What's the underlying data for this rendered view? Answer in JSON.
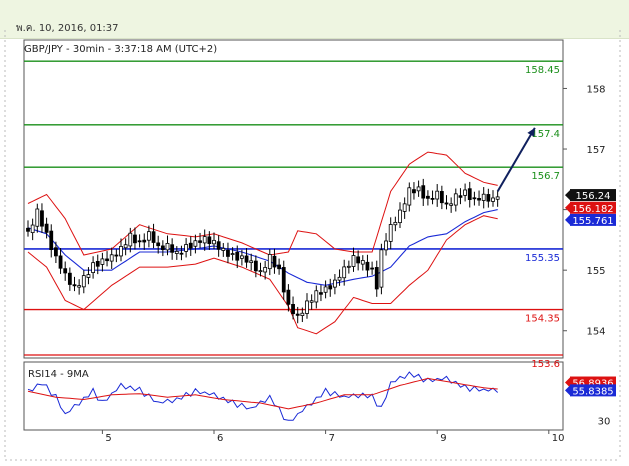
{
  "header": {
    "datetime": "พ.ค. 10, 2016, 01:37"
  },
  "chart_title": "GBP/JPY - 30min - 3:37:18 AM (UTC+2)",
  "indicator_title": "RSI14 - 9MA",
  "colors": {
    "background": "#ffffff",
    "candle": "#000000",
    "bollinger": "#dd1111",
    "moving_average": "#1a2ad6",
    "resistance": "#1a8f1a",
    "pivot": "#1a2ad6",
    "support": "#dd1111",
    "arrow": "#10205e",
    "price_tag_current": "#111111",
    "price_tag_upper": "#dd1111",
    "price_tag_ma": "#1a2ad6"
  },
  "chart_data": [
    {
      "type": "candlestick",
      "title": "GBP/JPY - 30min - 3:37:18 AM (UTC+2)",
      "y_ticks": [
        154,
        155,
        156,
        157,
        158
      ],
      "ylim": [
        153.55,
        158.8
      ],
      "x_ticks": [
        {
          "label": "5",
          "bar": 16
        },
        {
          "label": "6",
          "bar": 40
        },
        {
          "label": "7",
          "bar": 64
        },
        {
          "label": "9",
          "bar": 88
        },
        {
          "label": "10",
          "bar": 112
        }
      ],
      "levels": [
        {
          "label": "158.45",
          "value": 158.45,
          "kind": "resistance"
        },
        {
          "label": "157.4",
          "value": 157.4,
          "kind": "resistance"
        },
        {
          "label": "156.7",
          "value": 156.7,
          "kind": "resistance"
        },
        {
          "label": "155.35",
          "value": 155.35,
          "kind": "pivot"
        },
        {
          "label": "154.35",
          "value": 154.35,
          "kind": "support"
        },
        {
          "label": "153.6",
          "value": 153.6,
          "kind": "support"
        }
      ],
      "price_tags": [
        {
          "label": "156.24",
          "value": 156.24,
          "kind": "current"
        },
        {
          "label": "156.182",
          "value": 156.03,
          "kind": "upper"
        },
        {
          "label": "155.761",
          "value": 155.83,
          "kind": "ma"
        }
      ],
      "close_anchors": [
        [
          0,
          155.6
        ],
        [
          2,
          155.95
        ],
        [
          4,
          155.6
        ],
        [
          6,
          155.2
        ],
        [
          8,
          154.9
        ],
        [
          10,
          154.7
        ],
        [
          12,
          154.85
        ],
        [
          14,
          155.1
        ],
        [
          16,
          155.15
        ],
        [
          18,
          155.2
        ],
        [
          20,
          155.35
        ],
        [
          22,
          155.55
        ],
        [
          24,
          155.45
        ],
        [
          26,
          155.6
        ],
        [
          28,
          155.35
        ],
        [
          30,
          155.4
        ],
        [
          32,
          155.25
        ],
        [
          34,
          155.4
        ],
        [
          36,
          155.45
        ],
        [
          38,
          155.5
        ],
        [
          40,
          155.45
        ],
        [
          42,
          155.3
        ],
        [
          44,
          155.25
        ],
        [
          46,
          155.2
        ],
        [
          48,
          155.1
        ],
        [
          50,
          154.95
        ],
        [
          52,
          155.2
        ],
        [
          54,
          155.0
        ],
        [
          56,
          154.4
        ],
        [
          58,
          154.2
        ],
        [
          60,
          154.45
        ],
        [
          62,
          154.6
        ],
        [
          64,
          154.7
        ],
        [
          66,
          154.8
        ],
        [
          68,
          155.0
        ],
        [
          70,
          155.2
        ],
        [
          72,
          155.1
        ],
        [
          74,
          155.0
        ],
        [
          75,
          154.75
        ],
        [
          76,
          155.3
        ],
        [
          78,
          155.7
        ],
        [
          80,
          155.95
        ],
        [
          82,
          156.3
        ],
        [
          84,
          156.35
        ],
        [
          86,
          156.15
        ],
        [
          88,
          156.25
        ],
        [
          90,
          156.05
        ],
        [
          92,
          156.2
        ],
        [
          94,
          156.3
        ],
        [
          96,
          156.15
        ],
        [
          98,
          156.2
        ],
        [
          100,
          156.15
        ],
        [
          101,
          156.24
        ]
      ],
      "bands_anchors": {
        "upper": [
          [
            0,
            156.1
          ],
          [
            4,
            156.25
          ],
          [
            8,
            155.85
          ],
          [
            12,
            155.25
          ],
          [
            18,
            155.35
          ],
          [
            24,
            155.75
          ],
          [
            30,
            155.6
          ],
          [
            36,
            155.55
          ],
          [
            40,
            155.6
          ],
          [
            46,
            155.45
          ],
          [
            52,
            155.25
          ],
          [
            56,
            155.3
          ],
          [
            58,
            155.65
          ],
          [
            62,
            155.6
          ],
          [
            66,
            155.35
          ],
          [
            70,
            155.3
          ],
          [
            74,
            155.3
          ],
          [
            78,
            156.3
          ],
          [
            82,
            156.75
          ],
          [
            86,
            156.95
          ],
          [
            90,
            156.9
          ],
          [
            94,
            156.6
          ],
          [
            98,
            156.45
          ],
          [
            101,
            156.4
          ]
        ],
        "lower": [
          [
            0,
            155.3
          ],
          [
            4,
            155.05
          ],
          [
            8,
            154.5
          ],
          [
            12,
            154.35
          ],
          [
            18,
            154.75
          ],
          [
            24,
            155.05
          ],
          [
            30,
            155.05
          ],
          [
            36,
            155.1
          ],
          [
            40,
            155.2
          ],
          [
            46,
            155.05
          ],
          [
            52,
            154.85
          ],
          [
            56,
            154.4
          ],
          [
            58,
            154.05
          ],
          [
            62,
            153.95
          ],
          [
            66,
            154.15
          ],
          [
            70,
            154.55
          ],
          [
            74,
            154.45
          ],
          [
            78,
            154.45
          ],
          [
            82,
            154.75
          ],
          [
            86,
            155.0
          ],
          [
            90,
            155.5
          ],
          [
            94,
            155.75
          ],
          [
            98,
            155.9
          ],
          [
            101,
            155.85
          ]
        ],
        "mid": [
          [
            0,
            155.7
          ],
          [
            4,
            155.6
          ],
          [
            8,
            155.25
          ],
          [
            12,
            155.0
          ],
          [
            18,
            155.0
          ],
          [
            24,
            155.3
          ],
          [
            30,
            155.3
          ],
          [
            36,
            155.35
          ],
          [
            40,
            155.4
          ],
          [
            46,
            155.3
          ],
          [
            52,
            155.15
          ],
          [
            56,
            154.95
          ],
          [
            60,
            154.8
          ],
          [
            64,
            154.75
          ],
          [
            70,
            154.85
          ],
          [
            74,
            154.9
          ],
          [
            78,
            155.05
          ],
          [
            82,
            155.4
          ],
          [
            86,
            155.55
          ],
          [
            90,
            155.6
          ],
          [
            94,
            155.8
          ],
          [
            98,
            155.95
          ],
          [
            101,
            156.0
          ]
        ]
      },
      "arrow": {
        "from": [
          101,
          156.3
        ],
        "to": [
          109,
          157.35
        ]
      }
    },
    {
      "type": "line",
      "title": "RSI14 - 9MA",
      "y_ticks": [
        30
      ],
      "ylim": [
        22,
        80
      ],
      "series": [
        {
          "name": "RSI14",
          "color": "#1a2ad6",
          "anchors": [
            [
              0,
              55
            ],
            [
              3,
              62
            ],
            [
              6,
              50
            ],
            [
              8,
              35
            ],
            [
              10,
              42
            ],
            [
              14,
              55
            ],
            [
              16,
              45
            ],
            [
              20,
              60
            ],
            [
              24,
              56
            ],
            [
              28,
              45
            ],
            [
              32,
              48
            ],
            [
              36,
              55
            ],
            [
              40,
              52
            ],
            [
              44,
              45
            ],
            [
              48,
              40
            ],
            [
              52,
              50
            ],
            [
              56,
              28
            ],
            [
              58,
              35
            ],
            [
              60,
              42
            ],
            [
              64,
              55
            ],
            [
              68,
              50
            ],
            [
              72,
              52
            ],
            [
              74,
              50
            ],
            [
              76,
              40
            ],
            [
              78,
              62
            ],
            [
              82,
              70
            ],
            [
              86,
              64
            ],
            [
              90,
              66
            ],
            [
              94,
              58
            ],
            [
              98,
              56
            ],
            [
              101,
              56
            ]
          ]
        },
        {
          "name": "9MA",
          "color": "#dd1111",
          "anchors": [
            [
              0,
              55
            ],
            [
              6,
              50
            ],
            [
              12,
              48
            ],
            [
              18,
              52
            ],
            [
              24,
              53
            ],
            [
              30,
              50
            ],
            [
              36,
              52
            ],
            [
              42,
              48
            ],
            [
              50,
              45
            ],
            [
              56,
              40
            ],
            [
              62,
              45
            ],
            [
              68,
              52
            ],
            [
              74,
              52
            ],
            [
              80,
              60
            ],
            [
              86,
              66
            ],
            [
              92,
              62
            ],
            [
              98,
              58
            ],
            [
              101,
              57
            ]
          ]
        }
      ],
      "price_tags": [
        {
          "label": "56.8936",
          "value": 62.5,
          "kind": "upper"
        },
        {
          "label": "55.8385",
          "value": 55.8,
          "kind": "ma"
        }
      ]
    }
  ]
}
